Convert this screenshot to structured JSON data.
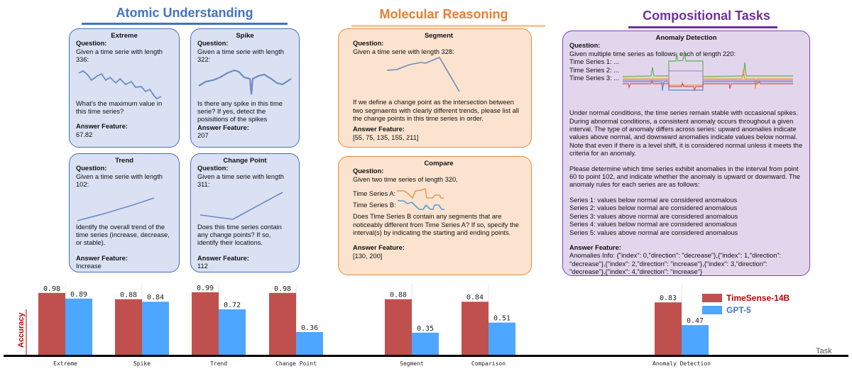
{
  "sections": {
    "atomic": "Atomic Understanding",
    "molecular": "Molecular Reasoning",
    "compositional": "Compositional Tasks"
  },
  "colors": {
    "atomic": "#4472c4",
    "molecular": "#ed7d31",
    "compositional": "#7030a0",
    "timesense": "#c0504d",
    "gpt5": "#4da6ff"
  },
  "labels": {
    "question": "Question:",
    "answer": "Answer Feature:"
  },
  "cards": {
    "extreme": {
      "title": "Extreme",
      "intro": "Given a time serie with length 336:",
      "prompt": "What's the maximum value in this time series?",
      "answer": "67.82"
    },
    "spike": {
      "title": "Spike",
      "intro": "Given a time serie with length 322:",
      "prompt": "Is there any spike in this time serie? If yes, detect the posisitions of the spikes",
      "answer": "207"
    },
    "trend": {
      "title": "Trend",
      "intro": "Given a time serie with length 102:",
      "prompt": "Identify the overall trend of the time series (increase, decrease, or stable).",
      "answer": "Increase"
    },
    "changepoint": {
      "title": "Change Point",
      "intro": "Given a time serie with length 311:",
      "prompt": "Does this time series contain any change points? If so, identify their locations.",
      "answer": "112"
    },
    "segment": {
      "title": "Segment",
      "intro": "Given a time serie with length 328:",
      "prompt": "If we define a change point as the intersection between two segmaents with clearly different trends, please list all the change points in this time series in order.",
      "answer": "[55, 75, 135, 155, 211]"
    },
    "compare": {
      "title": "Compare",
      "intro": "Given two time series of length 320,",
      "series_a": "Time Series A:",
      "series_b": "Time Series B:",
      "prompt": "Does Time Series B contain any segments that are noticeably different from Time Series A? If so, specify the interval(s) by indicating the starting and ending points.",
      "answer": "[130, 200]"
    },
    "anomaly": {
      "title": "Anomaly Detection",
      "intro": "Given multiple time series as follows, each of length 220:",
      "ts": [
        "Time Series 1: ...",
        "Time Series 2: ...",
        "Time Series 3: ..."
      ],
      "para1": "Under normal conditions, the time series remain stable with occasional spikes. During abnormal conditions, a consistent anomaly occurs throughout a given interval. The type of anomaly differs across series: upward anomalies indicate values above normal, and downward anomalies indicate values below normal. Note that even if there is a level shift, it is considered normal unless it meets the criteria for an anomaly.",
      "para2": "Please determine which time series exhibit anomalies in the interval from point 60 to point 102, and indicate whether the anomaly is upward or downward. The anomaly rules for each series are as follows:",
      "rules": [
        "Series 1: values below normal are considered anomalous",
        "Series 2: values below normal are considered anomalous",
        "Series 3: values above normal are considered anomalous",
        "Series 4: values below normal are considered anomalous",
        "Series 5: values above normal are considered anomalous"
      ],
      "answer": "Anomalies Info: {\"index\": 0,\"direction\": \"decrease\"},{\"index\": 1,\"direction\": \"decrease\"},{\"index\": 2,\"direction\": \"increase\"},{\"index\": 3,\"direction\": \"decrease\"},{\"index\": 4,\"direction\": \"increase\"}"
    }
  },
  "chart_data": {
    "type": "bar",
    "ylabel": "Accuracy",
    "xlabel": "Task",
    "categories": [
      "Extreme",
      "Spike",
      "Trend",
      "Change Point",
      "Segment",
      "Comparison",
      "Anomaly Detection"
    ],
    "series": [
      {
        "name": "TimeSense-14B",
        "values": [
          0.98,
          0.88,
          0.99,
          0.98,
          0.88,
          0.84,
          0.83
        ]
      },
      {
        "name": "GPT-5",
        "values": [
          0.89,
          0.84,
          0.72,
          0.36,
          0.35,
          0.51,
          0.47
        ]
      }
    ],
    "ylim": [
      0,
      1
    ],
    "grid": false,
    "legend": "top-right"
  }
}
